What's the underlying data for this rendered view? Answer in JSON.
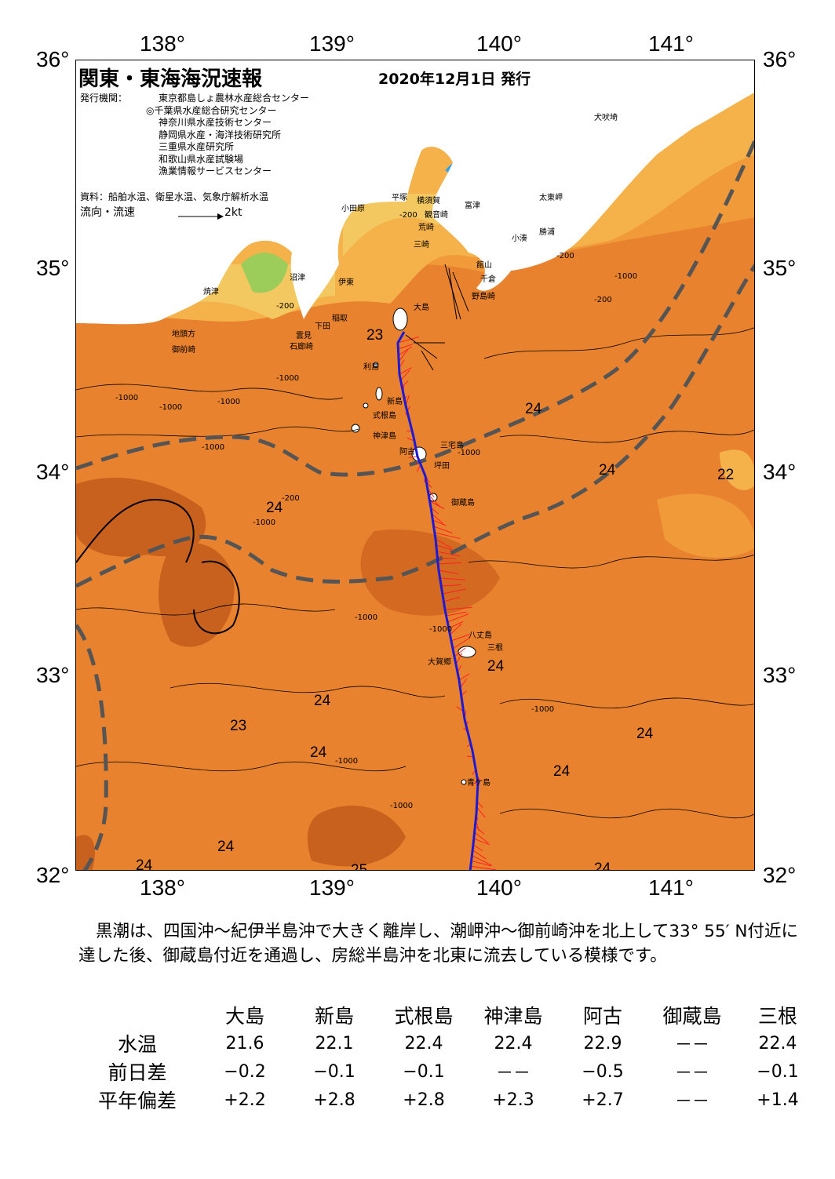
{
  "header": {
    "title": "関東・東海海況速報",
    "date": "2020年12月1日 発行"
  },
  "publishers": {
    "label": "発行機関：",
    "list": [
      "東京都島しょ農林水産総合センター",
      "◎千葉県水産総合研究センター",
      "神奈川県水産技術センター",
      "静岡県水産・海洋技術研究所",
      "三重県水産研究所",
      "和歌山県水産試験場",
      "漁業情報サービスセンター"
    ],
    "sources": "資料：船舶水温、衛星水温、気象庁解析水温",
    "flow_label": "流向・流速",
    "flow_scale": "2kt"
  },
  "axes": {
    "lon_labels": [
      "138°",
      "139°",
      "140°",
      "141°"
    ],
    "lat_labels": [
      "36°",
      "35°",
      "34°",
      "33°",
      "32°"
    ]
  },
  "places": [
    "犬吠埼",
    "太東岬",
    "勝浦",
    "小湊",
    "富津",
    "館山",
    "千倉",
    "野島崎",
    "横須賀",
    "観音崎",
    "荒崎",
    "三崎",
    "平塚",
    "小田原",
    "沼津",
    "伊東",
    "焼津",
    "稲取",
    "下田",
    "雲見",
    "石廊崎",
    "地頭方",
    "御前崎",
    "大島",
    "利島",
    "新島",
    "式根島",
    "神津島",
    "阿古",
    "三宅島",
    "坪田",
    "御蔵島",
    "八丈島",
    "三根",
    "大賀郷",
    "青ケ島"
  ],
  "contours": [
    "-200",
    "-200",
    "-200",
    "-1000",
    "-1000",
    "-1000",
    "-1000",
    "-1000",
    "-1000",
    "-200",
    "-1000",
    "-1000",
    "-1000",
    "-1000",
    "-1000",
    "-1000",
    "-1000",
    "-200"
  ],
  "temperature_labels": [
    "23",
    "24",
    "24",
    "22",
    "24",
    "24",
    "23",
    "24",
    "24",
    "24",
    "24",
    "24",
    "24",
    "24",
    "25",
    "24"
  ],
  "summary": "黒潮は、四国沖～紀伊半島沖で大きく離岸し、潮岬沖～御前崎沖を北上して33° 55′ N付近に達した後、御蔵島付近を通過し、房総半島沖を北東に流去している模様です。",
  "table": {
    "stations": [
      "大島",
      "新島",
      "式根島",
      "神津島",
      "阿古",
      "御蔵島",
      "三根"
    ],
    "rows": [
      {
        "label": "水温",
        "values": [
          "21.6",
          "22.1",
          "22.4",
          "22.4",
          "22.9",
          "－－",
          "22.4"
        ]
      },
      {
        "label": "前日差",
        "values": [
          "−0.2",
          "−0.1",
          "−0.1",
          "－－",
          "−0.5",
          "－－",
          "−0.1"
        ]
      },
      {
        "label": "平年偏差",
        "values": [
          "+2.2",
          "+2.8",
          "+2.8",
          "+2.3",
          "+2.7",
          "－－",
          "+1.4"
        ]
      }
    ]
  },
  "colors": {
    "sea_warm": "#e9822e",
    "sea_mid": "#f09a3a",
    "sea_light": "#f5b24a",
    "sea_dark": "#c8601e",
    "sea_cool": "#f4c860",
    "sea_green": "#9ccc5a",
    "sea_cyan": "#4fd0e0",
    "sea_blue": "#3aa0e0",
    "land": "#ffffff",
    "kuroshio_path": "#1a1ad8",
    "current_vectors": "#ff2020",
    "front_line": "#555555"
  }
}
